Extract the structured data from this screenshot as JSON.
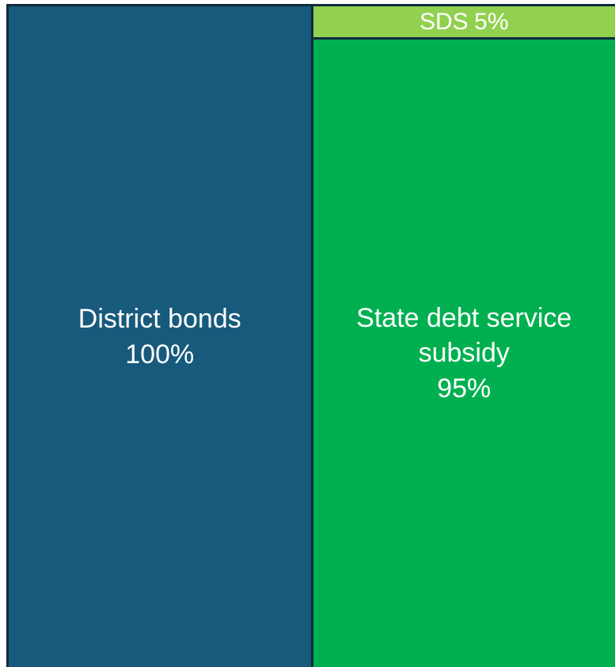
{
  "chart_data": {
    "type": "bar",
    "stacked": true,
    "categories": [
      null,
      null
    ],
    "series": [
      {
        "name": "District bonds",
        "color": "#175a7c",
        "values": [
          100,
          null
        ],
        "value_labels": [
          "100%",
          null
        ]
      },
      {
        "name": "State debt service subsidy",
        "color": "#00b050",
        "values": [
          null,
          95
        ],
        "value_labels": [
          null,
          "95%"
        ]
      },
      {
        "name": "SDS",
        "color": "#92d050",
        "values": [
          null,
          5
        ],
        "value_labels": [
          null,
          "5%"
        ]
      }
    ],
    "ylim": [
      0,
      100
    ]
  }
}
